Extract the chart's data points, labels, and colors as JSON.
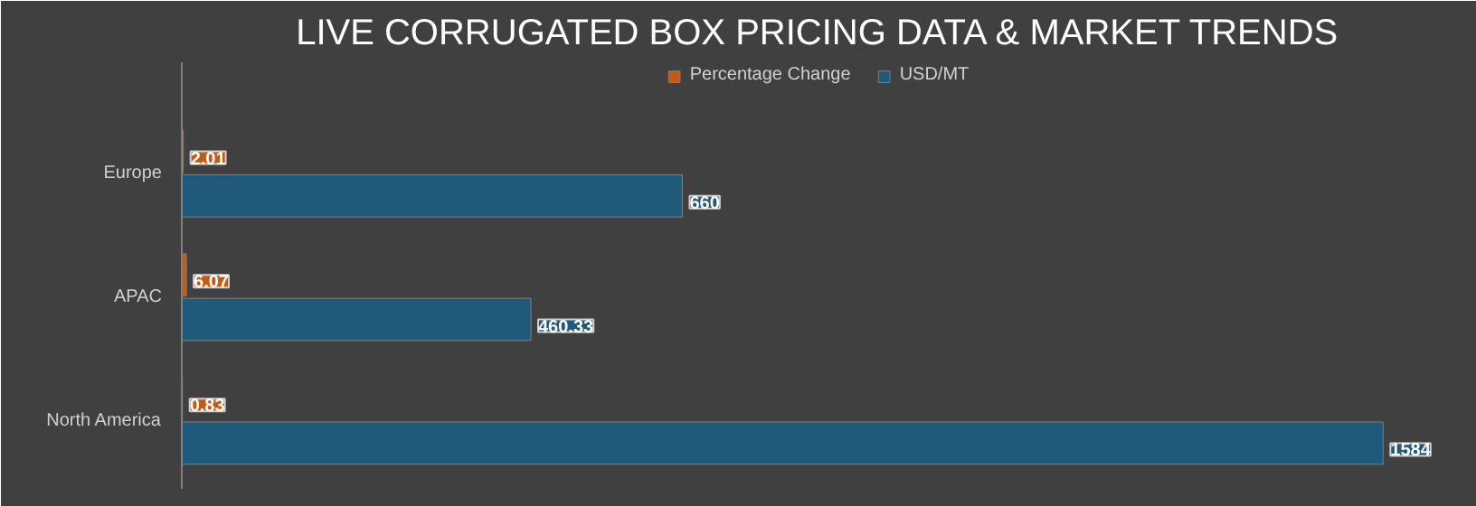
{
  "chart_data": {
    "type": "bar",
    "orientation": "horizontal",
    "title": "LIVE CORRUGATED BOX PRICING DATA & MARKET TRENDS",
    "categories": [
      "Europe",
      "APAC",
      "North America"
    ],
    "series": [
      {
        "name": "Percentage Change",
        "color": "#c55a11",
        "values": [
          2.01,
          6.07,
          0.83
        ]
      },
      {
        "name": "USD/MT",
        "color": "#1f5a7a",
        "values": [
          660,
          460.33,
          1584
        ]
      }
    ],
    "data_labels": true,
    "legend": "top"
  }
}
